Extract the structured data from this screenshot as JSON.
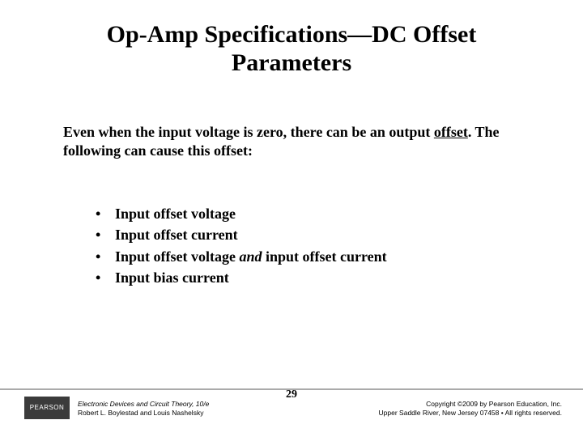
{
  "title_line1": "Op-Amp Specifications—DC Offset",
  "title_line2": "Parameters",
  "intro_pre": "Even when the input voltage is zero, there can be an output ",
  "intro_underlined": "offset",
  "intro_post": ". The following can cause this offset:",
  "bullets": {
    "b1": "Input offset voltage",
    "b2": "Input offset current",
    "b3_pre": "Input offset voltage ",
    "b3_italic": "and",
    "b3_post": " input offset current",
    "b4": "Input bias current"
  },
  "footer": {
    "logo_text": "PEARSON",
    "left_line1": "Electronic Devices and Circuit Theory, 10/e",
    "left_line2": "Robert L. Boylestad and Louis Nashelsky",
    "page_number": "29",
    "right_line1": "Copyright ©2009 by Pearson Education, Inc.",
    "right_line2": "Upper Saddle River, New Jersey 07458 • All rights reserved."
  },
  "colors": {
    "text": "#000000",
    "background": "#ffffff",
    "rule": "#aaaaaa",
    "logo_bg": "#3b3b3b",
    "logo_fg": "#ffffff"
  }
}
